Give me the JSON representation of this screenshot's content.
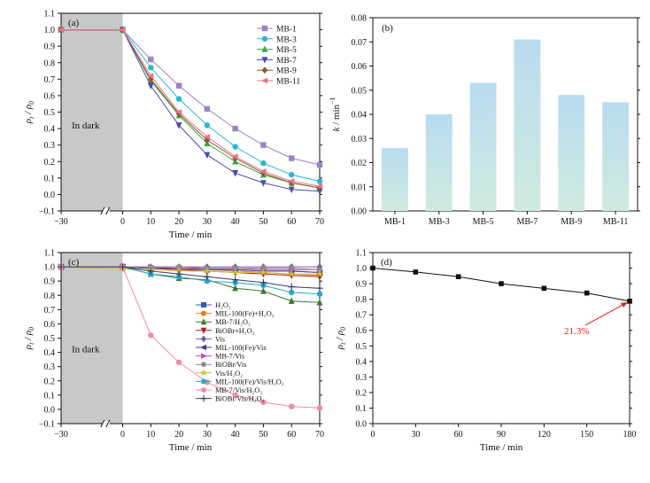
{
  "chart_data": [
    {
      "id": "a",
      "type": "line",
      "panel_label": "(a)",
      "dark_label": "In dark",
      "xlabel": "Time / min",
      "ylabel_main": "ρ",
      "ylabel_sub1": "t",
      "ylabel_mid": " / ρ",
      "ylabel_sub2": "0",
      "x_ticks": [
        "−30",
        "0",
        "10",
        "20",
        "30",
        "40",
        "50",
        "60",
        "70"
      ],
      "x_break": true,
      "ylim": [
        -0.1,
        1.1
      ],
      "y_ticks": [
        "−0.1",
        "0.0",
        "0.1",
        "0.2",
        "0.3",
        "0.4",
        "0.5",
        "0.6",
        "0.7",
        "0.8",
        "0.9",
        "1.0",
        "1.1"
      ],
      "legend_position": "top-right",
      "x": [
        -30,
        0,
        10,
        20,
        30,
        40,
        50,
        60,
        70
      ],
      "series": [
        {
          "name": "MB-1",
          "color": "#9b84c4",
          "marker": "square",
          "values": [
            1.0,
            1.0,
            0.82,
            0.66,
            0.52,
            0.4,
            0.3,
            0.22,
            0.18
          ]
        },
        {
          "name": "MB-3",
          "color": "#2ab8cf",
          "marker": "circle",
          "values": [
            1.0,
            1.0,
            0.77,
            0.58,
            0.42,
            0.29,
            0.19,
            0.12,
            0.08
          ]
        },
        {
          "name": "MB-5",
          "color": "#3aa347",
          "marker": "triangle-up",
          "values": [
            1.0,
            1.0,
            0.69,
            0.48,
            0.31,
            0.2,
            0.12,
            0.07,
            0.04
          ]
        },
        {
          "name": "MB-7",
          "color": "#4a4ab0",
          "marker": "triangle-down",
          "values": [
            1.0,
            1.0,
            0.66,
            0.42,
            0.24,
            0.13,
            0.07,
            0.03,
            0.02
          ]
        },
        {
          "name": "MB-9",
          "color": "#8a5a2b",
          "marker": "diamond",
          "values": [
            1.0,
            1.0,
            0.7,
            0.49,
            0.33,
            0.22,
            0.13,
            0.07,
            0.04
          ]
        },
        {
          "name": "MB-11",
          "color": "#e8748a",
          "marker": "triangle-left",
          "values": [
            1.0,
            1.0,
            0.72,
            0.5,
            0.35,
            0.23,
            0.14,
            0.08,
            0.05
          ]
        }
      ]
    },
    {
      "id": "b",
      "type": "bar",
      "panel_label": "(b)",
      "ylabel_main": "k",
      "ylabel_rest": " / min",
      "ylabel_sup": "−1",
      "categories": [
        "MB-1",
        "MB-3",
        "MB-5",
        "MB-7",
        "MB-9",
        "MB-11"
      ],
      "values": [
        0.026,
        0.04,
        0.053,
        0.071,
        0.048,
        0.045
      ],
      "ylim": [
        0,
        0.08
      ],
      "y_ticks": [
        "0.00",
        "0.01",
        "0.02",
        "0.03",
        "0.04",
        "0.05",
        "0.06",
        "0.07",
        "0.08"
      ],
      "bar_color_top": "#b8dcf0",
      "bar_color_bottom": "#cfeadf"
    },
    {
      "id": "c",
      "type": "line",
      "panel_label": "(c)",
      "dark_label": "In dark",
      "xlabel": "Time / min",
      "ylabel_main": "ρ",
      "ylabel_sub1": "t",
      "ylabel_mid": " / ρ",
      "ylabel_sub2": "0",
      "x_ticks": [
        "−30",
        "0",
        "10",
        "20",
        "30",
        "40",
        "50",
        "60",
        "70"
      ],
      "x_break": true,
      "ylim": [
        -0.1,
        1.1
      ],
      "y_ticks": [
        "−0.1",
        "0.0",
        "0.1",
        "0.2",
        "0.3",
        "0.4",
        "0.5",
        "0.6",
        "0.7",
        "0.8",
        "0.9",
        "1.0",
        "1.1"
      ],
      "legend_position": "center",
      "x": [
        -30,
        0,
        10,
        20,
        30,
        40,
        50,
        60,
        70
      ],
      "series": [
        {
          "name": "H₂O₂",
          "color": "#2f5fa7",
          "marker": "square",
          "values": [
            1.0,
            1.0,
            0.99,
            0.99,
            0.98,
            0.98,
            0.97,
            0.97,
            0.96
          ]
        },
        {
          "name": "MIL-100(Fe)+H₂O₂",
          "color": "#e07b1f",
          "marker": "circle",
          "values": [
            1.0,
            1.0,
            0.99,
            0.98,
            0.98,
            0.97,
            0.96,
            0.95,
            0.94
          ]
        },
        {
          "name": "MB-7/H₂O₂",
          "color": "#3a7a30",
          "marker": "triangle-up",
          "values": [
            1.0,
            1.0,
            0.95,
            0.92,
            0.91,
            0.85,
            0.83,
            0.76,
            0.75
          ]
        },
        {
          "name": "BiOBr+H₂O₂",
          "color": "#b01c1c",
          "marker": "triangle-down",
          "values": [
            1.0,
            1.0,
            0.99,
            0.98,
            0.97,
            0.96,
            0.95,
            0.94,
            0.93
          ]
        },
        {
          "name": "Vis",
          "color": "#7b5aa6",
          "marker": "diamond",
          "values": [
            1.0,
            1.0,
            1.0,
            1.0,
            1.0,
            1.0,
            1.0,
            1.0,
            1.0
          ]
        },
        {
          "name": "MIL-100(Fe)/Vis",
          "color": "#4a3a8a",
          "marker": "triangle-left",
          "values": [
            1.0,
            1.0,
            0.99,
            0.99,
            0.98,
            0.98,
            0.97,
            0.97,
            0.96
          ]
        },
        {
          "name": "MB-7/Vis",
          "color": "#c04ec0",
          "marker": "triangle-right",
          "values": [
            1.0,
            1.0,
            1.0,
            0.99,
            0.99,
            0.99,
            0.98,
            0.98,
            0.98
          ]
        },
        {
          "name": "BiOBr/Vis",
          "color": "#8a8a8a",
          "marker": "hexagon",
          "values": [
            1.0,
            1.0,
            1.0,
            1.0,
            0.99,
            0.99,
            0.99,
            0.99,
            0.98
          ]
        },
        {
          "name": "Vis/H₂O₂",
          "color": "#c9c23a",
          "marker": "star",
          "values": [
            1.0,
            0.98,
            0.98,
            0.97,
            0.97,
            0.96,
            0.96,
            0.95,
            0.95
          ]
        },
        {
          "name": "MIL-100(Fe)/Vis/H₂O₂",
          "color": "#2aa7c9",
          "marker": "circle",
          "values": [
            1.0,
            1.0,
            0.95,
            0.93,
            0.9,
            0.89,
            0.87,
            0.82,
            0.81
          ]
        },
        {
          "name": "MB-7/Vis/H₂O₂",
          "color": "#f08aa8",
          "marker": "circle",
          "values": [
            1.0,
            1.0,
            0.52,
            0.33,
            0.19,
            0.1,
            0.05,
            0.02,
            0.01
          ]
        },
        {
          "name": "BiOBr/Vis/H₂O₂",
          "color": "#3a3a6a",
          "marker": "plus",
          "values": [
            1.0,
            1.0,
            0.97,
            0.95,
            0.93,
            0.91,
            0.89,
            0.86,
            0.85
          ]
        }
      ]
    },
    {
      "id": "d",
      "type": "line",
      "panel_label": "(d)",
      "xlabel": "Time / min",
      "ylabel_main": "ρ",
      "ylabel_sub1": "t",
      "ylabel_mid": " / ρ",
      "ylabel_sub2": "0",
      "xlim": [
        0,
        180
      ],
      "x_ticks": [
        "0",
        "30",
        "60",
        "90",
        "120",
        "150",
        "180"
      ],
      "ylim": [
        0.0,
        1.1
      ],
      "y_ticks": [
        "0.0",
        "0.1",
        "0.2",
        "0.3",
        "0.4",
        "0.5",
        "0.6",
        "0.7",
        "0.8",
        "0.9",
        "1.0",
        "1.1"
      ],
      "x": [
        0,
        30,
        60,
        90,
        120,
        150,
        180
      ],
      "series": [
        {
          "color": "#111111",
          "marker": "square",
          "values": [
            1.0,
            0.975,
            0.945,
            0.9,
            0.87,
            0.84,
            0.787
          ]
        }
      ],
      "annotation": {
        "text": "21.3%",
        "color": "#e11b1b",
        "target_x": 180,
        "target_y": 0.787
      }
    }
  ]
}
